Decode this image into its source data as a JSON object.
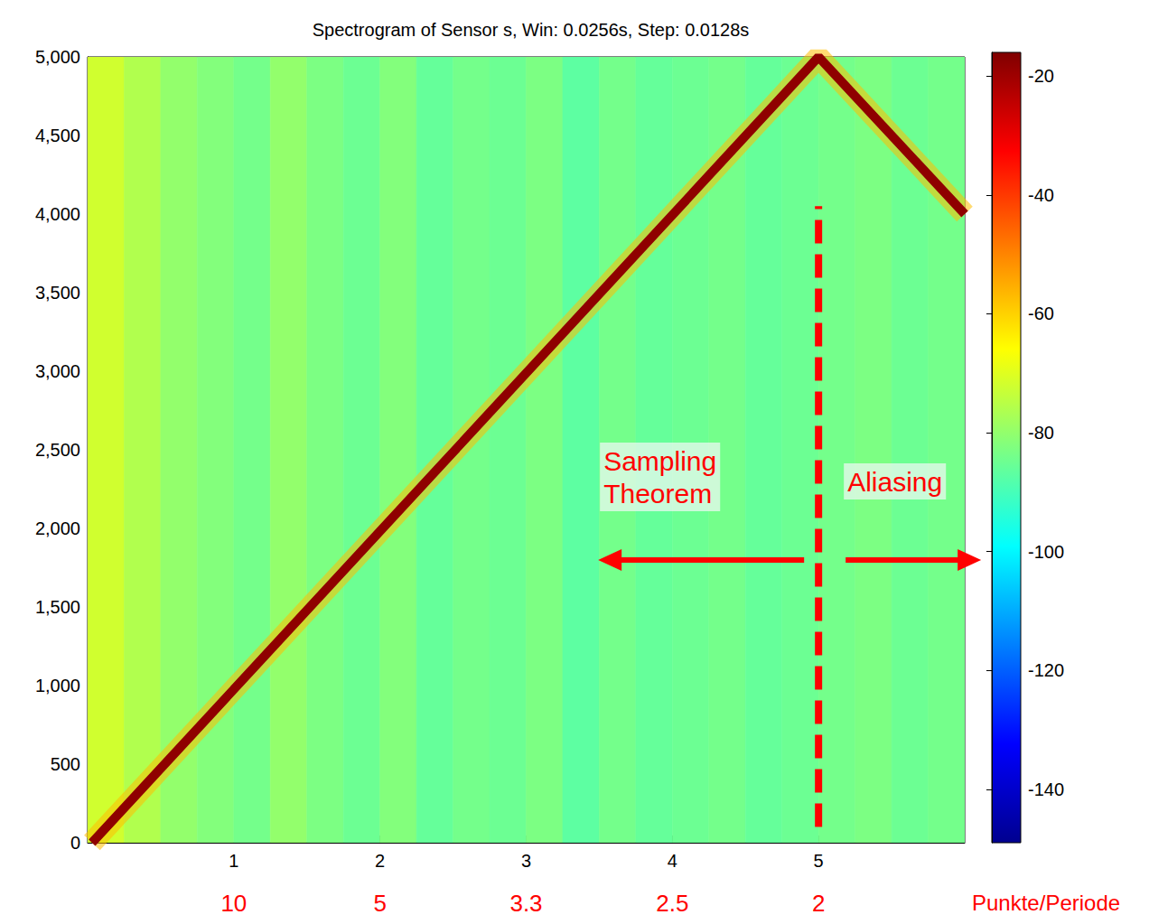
{
  "chart_data": {
    "type": "heatmap",
    "title": "Spectrogram of Sensor s, Win: 0.0256s, Step: 0.0128s",
    "xlim": [
      0,
      6
    ],
    "xticks": [
      1,
      2,
      3,
      4,
      5
    ],
    "ylim": [
      0,
      5000
    ],
    "yticks": [
      0,
      500,
      1000,
      1500,
      2000,
      2500,
      3000,
      3500,
      4000,
      4500,
      5000
    ],
    "secondary_x": {
      "ticks": [
        1,
        2,
        3,
        4,
        5
      ],
      "labels": [
        "10",
        "5",
        "3.3",
        "2.5",
        "2"
      ],
      "title": "Punkte/Periode",
      "color": "#ff0000"
    },
    "background": {
      "x_edges": [
        0,
        0.25,
        0.5,
        0.75,
        1,
        1.25,
        1.5,
        1.75,
        2,
        2.25,
        2.5,
        2.75,
        3,
        3.25,
        3.5,
        3.75,
        4,
        4.25,
        4.5,
        4.75,
        5,
        5.25,
        5.5,
        5.75,
        6
      ],
      "levels": [
        -72,
        -76,
        -80,
        -82,
        -84,
        -80,
        -83,
        -85,
        -82,
        -86,
        -84,
        -85,
        -83,
        -87,
        -84,
        -86,
        -85,
        -84,
        -86,
        -85,
        -84,
        -83,
        -85,
        -84
      ]
    },
    "ridge": {
      "x": [
        0.03,
        5,
        6
      ],
      "y": [
        0,
        5000,
        4000
      ],
      "level": -18
    },
    "colorbar": {
      "range": [
        -149,
        -16
      ],
      "ticks": [
        -20,
        -40,
        -60,
        -80,
        -100,
        -120,
        -140
      ]
    },
    "threshold": {
      "x": 5,
      "y": [
        100,
        4050
      ],
      "color": "#ff0000",
      "line_style": "dashed"
    },
    "annotations": {
      "left": "Sampling Theorem",
      "right": "Aliasing",
      "color": "#ff0000"
    }
  }
}
